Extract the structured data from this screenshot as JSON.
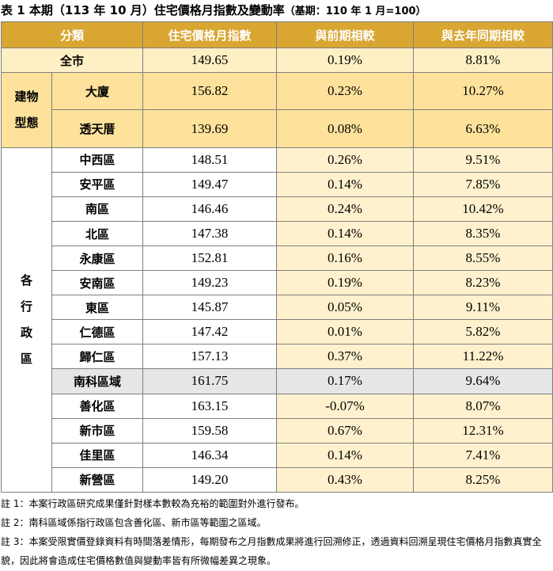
{
  "title": "表 1 本期（113 年 10 月）住宅價格月指數及變動率",
  "subtitle": "（基期：110 年 1 月=100）",
  "headers": [
    "分類",
    "住宅價格月指數",
    "與前期相較",
    "與去年同期相較"
  ],
  "total": {
    "label": "全市",
    "index": "149.65",
    "mom": "0.19%",
    "yoy": "8.81%"
  },
  "building_group": "建物型態",
  "building_group_chars": [
    "建物",
    "型態"
  ],
  "building": [
    {
      "label": "大廈",
      "index": "156.82",
      "mom": "0.23%",
      "yoy": "10.27%"
    },
    {
      "label": "透天厝",
      "index": "139.69",
      "mom": "0.08%",
      "yoy": "6.63%"
    }
  ],
  "district_group": "各行政區",
  "district_group_chars": [
    "各",
    "行",
    "政",
    "區"
  ],
  "districts": [
    {
      "label": "中西區",
      "index": "148.51",
      "mom": "0.26%",
      "yoy": "9.51%"
    },
    {
      "label": "安平區",
      "index": "149.47",
      "mom": "0.14%",
      "yoy": "7.85%"
    },
    {
      "label": "南區",
      "index": "146.46",
      "mom": "0.24%",
      "yoy": "10.42%"
    },
    {
      "label": "北區",
      "index": "147.38",
      "mom": "0.14%",
      "yoy": "8.35%"
    },
    {
      "label": "永康區",
      "index": "152.81",
      "mom": "0.16%",
      "yoy": "8.55%"
    },
    {
      "label": "安南區",
      "index": "149.23",
      "mom": "0.19%",
      "yoy": "8.23%"
    },
    {
      "label": "東區",
      "index": "145.87",
      "mom": "0.05%",
      "yoy": "9.11%"
    },
    {
      "label": "仁德區",
      "index": "147.42",
      "mom": "0.01%",
      "yoy": "5.82%"
    },
    {
      "label": "歸仁區",
      "index": "157.13",
      "mom": "0.37%",
      "yoy": "11.22%"
    },
    {
      "label": "南科區域",
      "index": "161.75",
      "mom": "0.17%",
      "yoy": "9.64%",
      "highlight": true
    },
    {
      "label": "善化區",
      "index": "163.15",
      "mom": "-0.07%",
      "yoy": "8.07%"
    },
    {
      "label": "新市區",
      "index": "159.58",
      "mom": "0.67%",
      "yoy": "12.31%"
    },
    {
      "label": "佳里區",
      "index": "146.34",
      "mom": "0.14%",
      "yoy": "7.41%"
    },
    {
      "label": "新營區",
      "index": "149.20",
      "mom": "0.43%",
      "yoy": "8.25%"
    }
  ],
  "notes": [
    "註 1：本案行政區研究成果僅針對樣本數較為充裕的範圍對外進行發布。",
    "註 2：南科區域係指行政區包含善化區、新市區等範圍之區域。",
    "註 3：本案受限實價登錄資料有時間落差情形，每期發布之月指數成果將進行回溯修正，透過資料回溯呈現住宅價格月指數真實全貌，因此將會造成住宅價格數值與變動率皆有所微幅差異之現象。"
  ],
  "colors": {
    "header": "#d9a632",
    "total_row": "#ffefc4",
    "building_rows": "#fee29b",
    "light_columns": "#fff1cd",
    "highlight_row": "#e6e6e6",
    "border": "#7f7f7f"
  }
}
